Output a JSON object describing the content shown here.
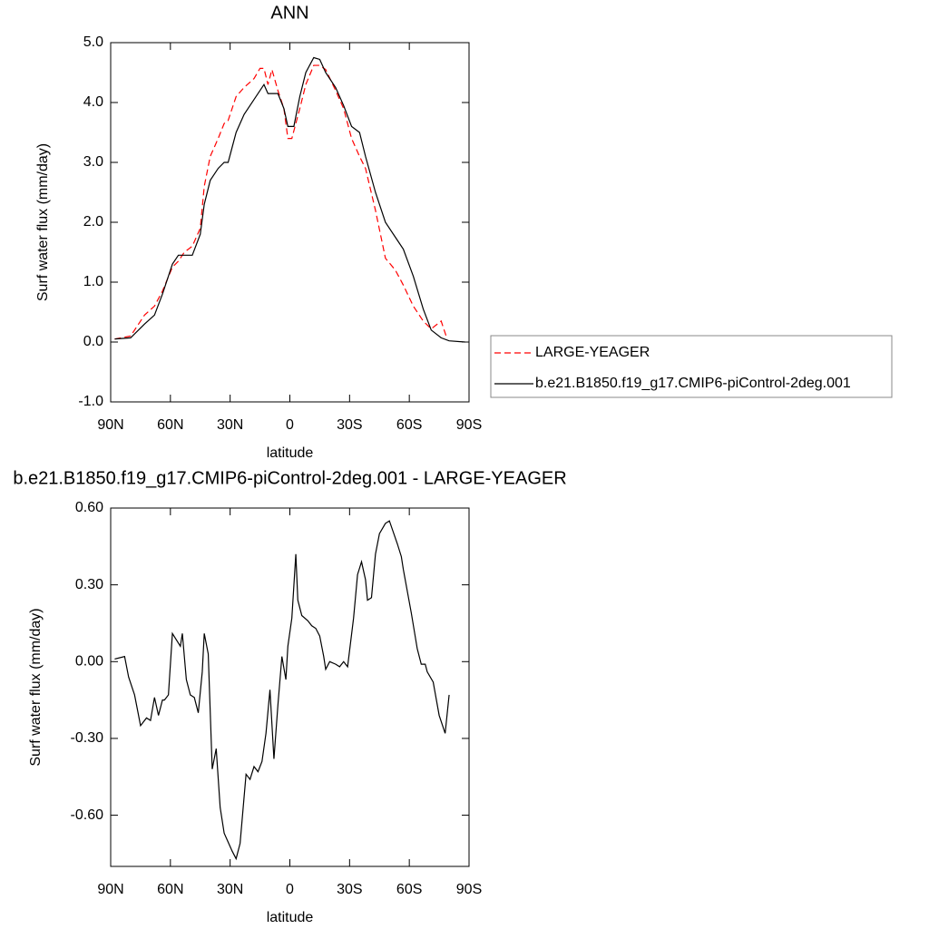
{
  "chart_data": [
    {
      "type": "line",
      "title": "ANN",
      "xlabel": "latitude",
      "ylabel": "Surf water flux (mm/day)",
      "xlim": [
        90,
        -90
      ],
      "ylim": [
        -1.0,
        5.0
      ],
      "xticks": [
        {
          "value": 90,
          "label": "90N"
        },
        {
          "value": 60,
          "label": "60N"
        },
        {
          "value": 30,
          "label": "30N"
        },
        0,
        {
          "value": -30,
          "label": "30S"
        },
        {
          "value": -60,
          "label": "60S"
        },
        {
          "value": -90,
          "label": "90S"
        }
      ],
      "yticks": [
        {
          "value": -1,
          "label": "-1.0"
        },
        {
          "value": 0,
          "label": "0.0"
        },
        {
          "value": 1,
          "label": "1.0"
        },
        {
          "value": 2,
          "label": "2.0"
        },
        {
          "value": 3,
          "label": "3.0"
        },
        {
          "value": 4,
          "label": "4.0"
        },
        {
          "value": 5,
          "label": "5.0"
        }
      ],
      "legend": "right",
      "series": [
        {
          "name": "LARGE-YEAGER",
          "color": "#ff0000",
          "style": "dashed",
          "x": [
            88,
            80,
            73,
            68,
            64,
            59,
            56,
            53,
            49,
            45,
            43,
            40,
            36,
            33,
            31,
            27,
            23,
            18,
            15,
            13,
            11,
            9,
            6,
            3,
            1,
            -1,
            -5,
            -8,
            -12,
            -15,
            -18,
            -23,
            -27,
            -31,
            -35,
            -38,
            -43,
            -48,
            -53,
            -57,
            -62,
            -67,
            -71,
            -76,
            -79
          ],
          "values": [
            0.05,
            0.1,
            0.45,
            0.6,
            0.85,
            1.25,
            1.35,
            1.5,
            1.6,
            1.9,
            2.6,
            3.1,
            3.4,
            3.65,
            3.7,
            4.1,
            4.25,
            4.4,
            4.57,
            4.57,
            4.3,
            4.55,
            4.2,
            3.9,
            3.4,
            3.4,
            3.9,
            4.3,
            4.62,
            4.62,
            4.55,
            4.2,
            3.9,
            3.4,
            3.1,
            2.9,
            2.2,
            1.4,
            1.2,
            0.95,
            0.6,
            0.35,
            0.22,
            0.35,
            0.05
          ]
        },
        {
          "name": "b.e21.B1850.f19_g17.CMIP6-piControl-2deg.001",
          "color": "#000000",
          "style": "solid",
          "x": [
            88,
            80,
            73,
            68,
            64,
            59,
            56,
            53,
            49,
            45,
            43,
            40,
            36,
            33,
            31,
            27,
            23,
            18,
            13,
            11,
            6,
            3,
            1,
            -2,
            -5,
            -8,
            -12,
            -15,
            -18,
            -23,
            -27,
            -31,
            -35,
            -38,
            -43,
            -48,
            -53,
            -57,
            -62,
            -67,
            -71,
            -76,
            -80,
            -88
          ],
          "values": [
            0.05,
            0.07,
            0.3,
            0.45,
            0.8,
            1.3,
            1.45,
            1.45,
            1.45,
            1.8,
            2.3,
            2.7,
            2.9,
            3.0,
            3.0,
            3.5,
            3.8,
            4.05,
            4.3,
            4.15,
            4.15,
            3.9,
            3.6,
            3.6,
            4.1,
            4.5,
            4.75,
            4.72,
            4.5,
            4.25,
            3.95,
            3.6,
            3.5,
            3.1,
            2.5,
            2.0,
            1.75,
            1.55,
            1.1,
            0.55,
            0.2,
            0.07,
            0.02,
            0.0
          ]
        }
      ]
    },
    {
      "type": "line",
      "title": "b.e21.B1850.f19_g17.CMIP6-piControl-2deg.001 - LARGE-YEAGER",
      "xlabel": "latitude",
      "ylabel": "Surf water flux (mm/day)",
      "xlim": [
        90,
        -90
      ],
      "ylim": [
        -0.8,
        0.6
      ],
      "xticks": [
        {
          "value": 90,
          "label": "90N"
        },
        {
          "value": 60,
          "label": "60N"
        },
        {
          "value": 30,
          "label": "30N"
        },
        0,
        {
          "value": -30,
          "label": "30S"
        },
        {
          "value": -60,
          "label": "60S"
        },
        {
          "value": -90,
          "label": "90S"
        }
      ],
      "yticks": [
        {
          "value": -0.6,
          "label": "-0.60"
        },
        {
          "value": -0.3,
          "label": "-0.30"
        },
        {
          "value": 0,
          "label": "0.00"
        },
        {
          "value": 0.3,
          "label": "0.30"
        },
        {
          "value": 0.6,
          "label": "0.60"
        }
      ],
      "series": [
        {
          "color": "#000000",
          "style": "solid",
          "x": [
            88,
            83,
            81,
            78,
            75,
            72,
            70,
            68,
            66,
            64,
            63,
            61,
            59,
            55,
            54,
            52,
            50,
            48,
            46,
            44,
            43,
            41,
            39,
            37,
            35,
            33,
            29,
            27,
            25,
            22,
            20,
            18,
            16,
            14,
            12,
            10,
            8,
            6,
            4,
            2,
            1,
            -1,
            -3,
            -4,
            -6,
            -9,
            -11,
            -13,
            -15,
            -17,
            -18,
            -20,
            -23,
            -25,
            -27,
            -29,
            -32,
            -34,
            -36,
            -38,
            -39,
            -41,
            -43,
            -45,
            -48,
            -50,
            -54,
            -56,
            -57,
            -61,
            -64,
            -66,
            -68,
            -69,
            -72,
            -75,
            -78,
            -80
          ],
          "values": [
            0.01,
            0.02,
            -0.06,
            -0.13,
            -0.25,
            -0.22,
            -0.23,
            -0.14,
            -0.21,
            -0.15,
            -0.15,
            -0.13,
            0.11,
            0.06,
            0.11,
            -0.07,
            -0.13,
            -0.14,
            -0.2,
            -0.04,
            0.11,
            0.03,
            -0.42,
            -0.34,
            -0.57,
            -0.67,
            -0.74,
            -0.77,
            -0.71,
            -0.44,
            -0.46,
            -0.41,
            -0.43,
            -0.39,
            -0.28,
            -0.11,
            -0.38,
            -0.17,
            0.02,
            -0.07,
            0.06,
            0.17,
            0.42,
            0.24,
            0.18,
            0.16,
            0.14,
            0.13,
            0.1,
            0.02,
            -0.03,
            0.0,
            -0.01,
            -0.02,
            0.0,
            -0.02,
            0.17,
            0.34,
            0.39,
            0.32,
            0.24,
            0.25,
            0.42,
            0.5,
            0.54,
            0.55,
            0.46,
            0.41,
            0.36,
            0.19,
            0.05,
            -0.01,
            -0.01,
            -0.04,
            -0.08,
            -0.21,
            -0.28,
            -0.13
          ]
        }
      ]
    }
  ]
}
